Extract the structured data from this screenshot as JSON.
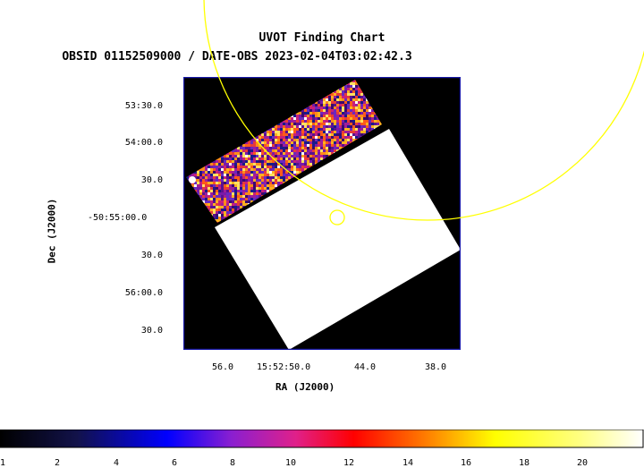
{
  "header": {
    "title": "UVOT Finding Chart",
    "subtitle": "OBSID 01152509000 / DATE-OBS 2023-02-04T03:02:42.3"
  },
  "axes": {
    "xlabel": "RA (J2000)",
    "ylabel": "Dec (J2000)",
    "xticks": [
      "56.0",
      "15:52:50.0",
      "44.0",
      "38.0"
    ],
    "yticks": [
      "53:30.0",
      "54:00.0",
      "30.0",
      "-50:55:00.0",
      "30.0",
      "56:00.0",
      "30.0"
    ]
  },
  "colorbar": {
    "ticks": [
      "1",
      "2",
      "4",
      "6",
      "8",
      "10",
      "12",
      "14",
      "16",
      "18",
      "20"
    ]
  },
  "colors": {
    "frame": "#1a1aa8",
    "background": "#000000",
    "saturated": "#ffffff",
    "marker": "#ffff00"
  }
}
